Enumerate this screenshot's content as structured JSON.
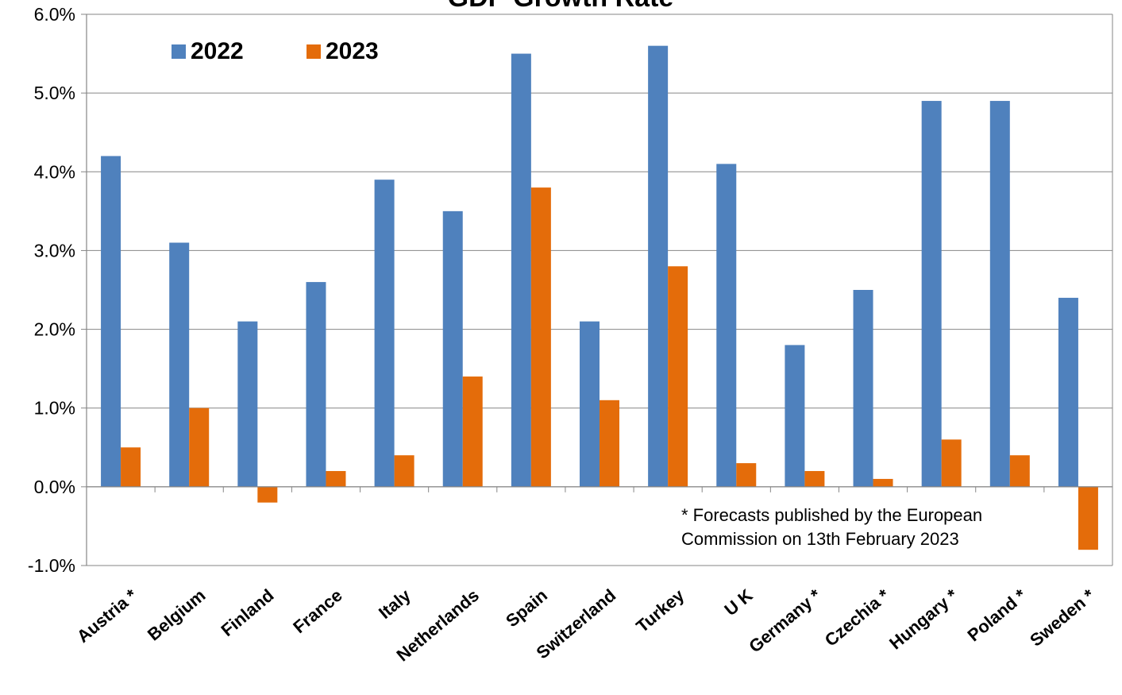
{
  "chart_data": {
    "type": "bar",
    "title": "GDP Growth Rate",
    "categories": [
      "Austria *",
      "Belgium",
      "Finland",
      "France",
      "Italy",
      "Netherlands",
      "Spain",
      "Switzerland",
      "Turkey",
      "U K",
      "Germany *",
      "Czechia *",
      "Hungary *",
      "Poland *",
      "Sweden *"
    ],
    "series": [
      {
        "name": "2022",
        "color": "#4f81bd",
        "values": [
          4.2,
          3.1,
          2.1,
          2.6,
          3.9,
          3.5,
          5.5,
          2.1,
          5.6,
          4.1,
          1.8,
          2.5,
          4.9,
          4.9,
          2.4
        ]
      },
      {
        "name": "2023",
        "color": "#e46c0a",
        "values": [
          0.5,
          1.0,
          -0.2,
          0.2,
          0.4,
          1.4,
          3.8,
          1.1,
          2.8,
          0.3,
          0.2,
          0.1,
          0.6,
          0.4,
          -0.8
        ]
      }
    ],
    "ylim": [
      -1.0,
      6.0
    ],
    "yticks": [
      "-1.0%",
      "0.0%",
      "1.0%",
      "2.0%",
      "3.0%",
      "4.0%",
      "5.0%",
      "6.0%"
    ],
    "xlabel": "",
    "ylabel": "",
    "grid": true,
    "legend": "top-left",
    "annotation": [
      "* Forecasts published by the European",
      "Commission on 13th February 2023"
    ]
  }
}
